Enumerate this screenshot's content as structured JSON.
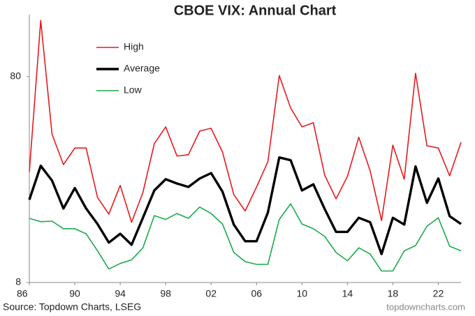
{
  "chart_data": {
    "type": "line",
    "title": "CBOE VIX: Annual Chart",
    "source": "Source: Topdown Charts, LSEG",
    "watermark": "topdowncharts.com",
    "x": [
      1986,
      1987,
      1988,
      1989,
      1990,
      1991,
      1992,
      1993,
      1994,
      1995,
      1996,
      1997,
      1998,
      1999,
      2000,
      2001,
      2002,
      2003,
      2004,
      2005,
      2006,
      2007,
      2008,
      2009,
      2010,
      2011,
      2012,
      2013,
      2014,
      2015,
      2016,
      2017,
      2018,
      2019,
      2020,
      2021,
      2022,
      2023,
      2024
    ],
    "series": [
      {
        "name": "High",
        "color": "#e8191c",
        "width": 1.6,
        "values": [
          27.6,
          150,
          42,
          29.9,
          36,
          36,
          20.7,
          17.2,
          23.7,
          15.7,
          21.9,
          37.8,
          45.6,
          32.9,
          33.4,
          43.5,
          44.9,
          34.4,
          21.4,
          17.8,
          23.3,
          30.9,
          81,
          56.3,
          45.6,
          47.8,
          26.6,
          20.4,
          26.2,
          40.6,
          27.9,
          16,
          37.2,
          25.4,
          83,
          36.9,
          36,
          26.4,
          38.4
        ]
      },
      {
        "name": "Average",
        "color": "#000000",
        "width": 3.4,
        "values": [
          20.2,
          29.5,
          25,
          18.3,
          23,
          18.3,
          15.4,
          12.5,
          13.8,
          12.2,
          16.5,
          22.4,
          25.4,
          24.2,
          23.3,
          25.6,
          27.2,
          22.1,
          15.3,
          12.7,
          12.7,
          17.5,
          32.4,
          31.4,
          22.4,
          24,
          18.2,
          14.1,
          14.1,
          16.5,
          15.7,
          11,
          16.5,
          15.3,
          29.3,
          19.5,
          25.6,
          16.8,
          15.4
        ]
      },
      {
        "name": "Low",
        "color": "#1aab4b",
        "width": 1.6,
        "values": [
          16.4,
          15.8,
          15.9,
          14.6,
          14.6,
          13.8,
          11.4,
          9.3,
          9.9,
          10.3,
          11.8,
          16.9,
          16.2,
          17.3,
          16.4,
          18.6,
          17.3,
          15.4,
          11.2,
          10.1,
          9.8,
          9.8,
          16.2,
          19.3,
          15.4,
          14.6,
          13.4,
          11.2,
          10.2,
          11.8,
          11,
          9.1,
          9.1,
          11.4,
          12.1,
          15,
          16.5,
          12,
          11.4
        ]
      }
    ],
    "xlim": [
      1986,
      2024
    ],
    "xticks": [
      {
        "value": 1986,
        "label": "86"
      },
      {
        "value": 1990,
        "label": "90"
      },
      {
        "value": 1994,
        "label": "94"
      },
      {
        "value": 1998,
        "label": "98"
      },
      {
        "value": 2002,
        "label": "02"
      },
      {
        "value": 2006,
        "label": "06"
      },
      {
        "value": 2010,
        "label": "10"
      },
      {
        "value": 2014,
        "label": "14"
      },
      {
        "value": 2018,
        "label": "18"
      },
      {
        "value": 2022,
        "label": "22"
      }
    ],
    "ylim": [
      8,
      160
    ],
    "yticks": [
      8,
      80
    ],
    "yscale": "log",
    "grid": false,
    "legend": "upper left"
  }
}
